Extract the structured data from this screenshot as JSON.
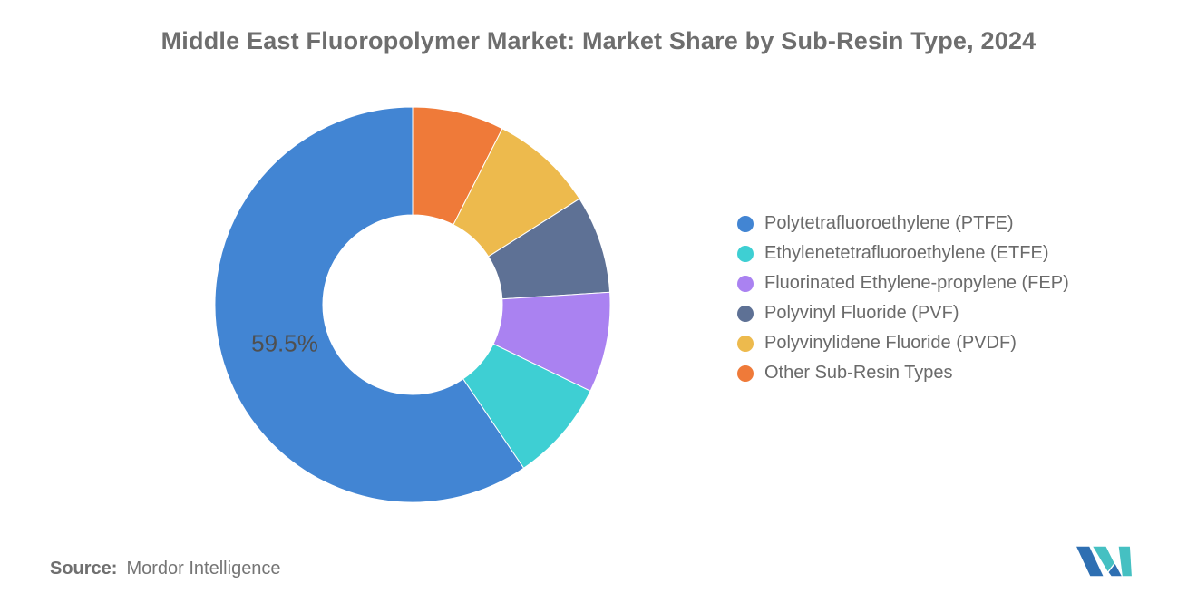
{
  "title": "Middle East Fluoropolymer Market: Market Share by Sub-Resin Type, 2024",
  "chart_data": {
    "type": "pie",
    "subtype": "donut",
    "title": "Middle East Fluoropolymer Market: Market Share by Sub-Resin Type, 2024",
    "labels": [
      "Polytetrafluoroethylene (PTFE)",
      "Ethylenetetrafluoroethylene (ETFE)",
      "Fluorinated Ethylene-propylene (FEP)",
      "Polyvinyl Fluoride (PVF)",
      "Polyvinylidene Fluoride (PVDF)",
      "Other Sub-Resin Types"
    ],
    "values": [
      59.5,
      8.3,
      8.2,
      8.0,
      8.5,
      7.5
    ],
    "unit": "%",
    "colors": [
      "#4285d3",
      "#3ecfd3",
      "#aa82f1",
      "#5e7195",
      "#edba4d",
      "#ef7a39"
    ],
    "hole_ratio": 0.455,
    "start_angle_deg": 0,
    "direction": "clockwise",
    "slice_draw_order": "reverse-of-legend",
    "data_labels": [
      {
        "text": "59.5%",
        "slice": "Polytetrafluoroethylene (PTFE)"
      }
    ],
    "legend_position": "right",
    "grid": false
  },
  "source": {
    "label": "Source:",
    "value": "Mordor Intelligence"
  },
  "logo": {
    "name": "mordor-intelligence-logo",
    "blue": "#2e6fb2",
    "teal": "#45c0c2"
  }
}
